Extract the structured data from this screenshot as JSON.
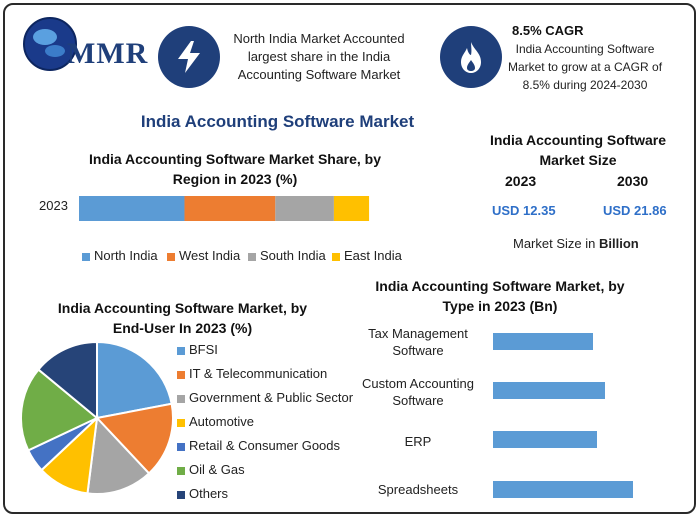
{
  "header": {
    "logo_text": "MMR",
    "note1": "North India Market Accounted largest share in the India Accounting Software Market",
    "note2_title": "8.5% CAGR",
    "note2": "India Accounting Software Market to grow at a CAGR of 8.5% during 2024-2030"
  },
  "main_title": "India Accounting Software Market",
  "size_panel": {
    "title": "India Accounting Software Market Size",
    "year1": "2023",
    "year2": "2030",
    "value1": "USD 12.35",
    "value2": "USD 21.86",
    "unit_prefix": "Market Size in ",
    "unit_bold": "Billion"
  },
  "colors": {
    "brand": "#1f3f7a",
    "blue": "#5b9bd5",
    "orange": "#ed7d31",
    "gray": "#a5a5a5",
    "yellow": "#ffc000",
    "darkblue": "#4472c4",
    "green": "#70ad47",
    "navy": "#264478",
    "value_text": "#2e6fc8"
  },
  "chart_data": [
    {
      "type": "bar",
      "orientation": "horizontal-stacked",
      "title": "India Accounting Software Market Share, by Region in 2023 (%)",
      "categories": [
        "2023"
      ],
      "series": [
        {
          "name": "North India",
          "values": [
            36
          ]
        },
        {
          "name": "West India",
          "values": [
            31
          ]
        },
        {
          "name": "South India",
          "values": [
            20
          ]
        },
        {
          "name": "East India",
          "values": [
            12
          ]
        }
      ],
      "legend": "bottom"
    },
    {
      "type": "pie",
      "title": "India Accounting Software Market, by End-User In 2023 (%)",
      "labels": [
        "BFSI",
        "IT & Telecommunication",
        "Government & Public Sector",
        "Automotive",
        "Retail & Consumer Goods",
        "Oil & Gas",
        "Others"
      ],
      "values": [
        22,
        16,
        14,
        11,
        5,
        18,
        14
      ],
      "legend": "right"
    },
    {
      "type": "bar",
      "orientation": "horizontal",
      "title": "India Accounting Software Market, by Type in 2023 (Bn)",
      "categories": [
        "Tax Management Software",
        "Custom Accounting Software",
        "ERP",
        "Spreadsheets"
      ],
      "values": [
        2.5,
        2.8,
        2.6,
        3.5
      ],
      "xlim": [
        0,
        5
      ]
    }
  ]
}
